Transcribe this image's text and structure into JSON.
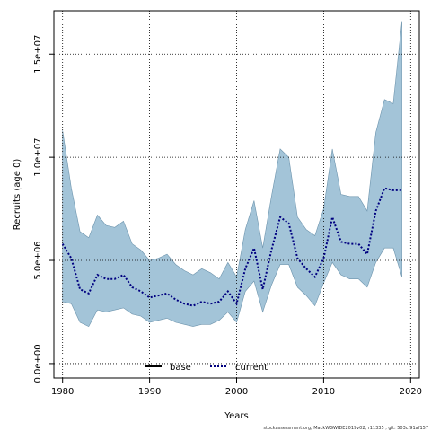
{
  "chart_data": {
    "type": "area",
    "xlabel": "Years",
    "ylabel": "Recruits (age 0)",
    "xlim": [
      1979,
      2021
    ],
    "ylim": [
      -700000,
      17100000
    ],
    "x_ticks": [
      1980,
      1990,
      2000,
      2010,
      2020
    ],
    "x_tick_labels": [
      "1980",
      "1990",
      "2000",
      "2010",
      "2020"
    ],
    "y_ticks": [
      0,
      5000000,
      10000000,
      15000000
    ],
    "y_tick_labels": [
      "0.0e+00",
      "5.0e+06",
      "1.0e+07",
      "1.5e+07"
    ],
    "grid": true,
    "x": [
      1980,
      1981,
      1982,
      1983,
      1984,
      1985,
      1986,
      1987,
      1988,
      1989,
      1990,
      1991,
      1992,
      1993,
      1994,
      1995,
      1996,
      1997,
      1998,
      1999,
      2000,
      2001,
      2002,
      2003,
      2004,
      2005,
      2006,
      2007,
      2008,
      2009,
      2010,
      2011,
      2012,
      2013,
      2014,
      2015,
      2016,
      2017,
      2018,
      2019
    ],
    "series": [
      {
        "name": "current",
        "color": "#000080",
        "style": "dotted",
        "values": [
          5800000,
          5100000,
          3600000,
          3400000,
          4300000,
          4100000,
          4100000,
          4300000,
          3700000,
          3500000,
          3200000,
          3300000,
          3400000,
          3100000,
          2900000,
          2800000,
          3000000,
          2900000,
          3000000,
          3500000,
          2900000,
          4600000,
          5600000,
          3600000,
          5500000,
          7100000,
          6800000,
          5100000,
          4600000,
          4200000,
          5100000,
          7100000,
          5900000,
          5800000,
          5800000,
          5300000,
          7400000,
          8500000,
          8400000,
          8400000
        ]
      }
    ],
    "band": {
      "color": "#a3c4d8",
      "upper": [
        11300000,
        8500000,
        6400000,
        6100000,
        7200000,
        6700000,
        6600000,
        6900000,
        5800000,
        5500000,
        5000000,
        5100000,
        5300000,
        4800000,
        4500000,
        4300000,
        4600000,
        4400000,
        4100000,
        4900000,
        4200000,
        6500000,
        7900000,
        5600000,
        8100000,
        10400000,
        10000000,
        7100000,
        6500000,
        6200000,
        7500000,
        10400000,
        8200000,
        8100000,
        8100000,
        7400000,
        11200000,
        12800000,
        12600000,
        16600000
      ],
      "lower": [
        3000000,
        2900000,
        2000000,
        1800000,
        2600000,
        2500000,
        2600000,
        2700000,
        2400000,
        2300000,
        2000000,
        2100000,
        2200000,
        2000000,
        1900000,
        1800000,
        1900000,
        1900000,
        2100000,
        2500000,
        2000000,
        3500000,
        4000000,
        2500000,
        3800000,
        4800000,
        4800000,
        3700000,
        3300000,
        2800000,
        3900000,
        4900000,
        4300000,
        4100000,
        4100000,
        3700000,
        4900000,
        5600000,
        5600000,
        4200000
      ]
    },
    "legend": {
      "placement": "bottom-center",
      "entries": [
        {
          "label": "base",
          "color": "#000000",
          "style": "solid"
        },
        {
          "label": "current",
          "color": "#000080",
          "style": "dotted"
        }
      ]
    }
  },
  "footer": {
    "text": "stockassessment.org, MackWGWIDE2019v02, r11335 , git: 503cf91af157"
  }
}
